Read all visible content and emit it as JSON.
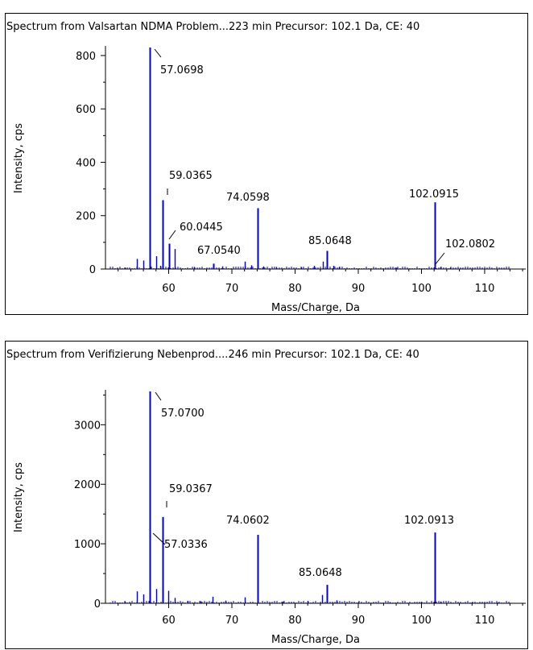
{
  "colors": {
    "spectrum": "#0000e6",
    "axis": "#000000",
    "label": "#000000"
  },
  "chart_data": [
    {
      "type": "bar",
      "title": "Spectrum from Valsartan NDMA Problem...223 min Precursor: 102.1 Da, CE: 40",
      "xlabel": "Mass/Charge, Da",
      "ylabel": "Intensity, cps",
      "xlim": [
        50,
        116.5
      ],
      "ylim": [
        0,
        830
      ],
      "xticks": [
        60,
        70,
        80,
        90,
        100,
        110
      ],
      "yticks": [
        0,
        200,
        400,
        600,
        800
      ],
      "peaks": [
        {
          "x": 57.0698,
          "y": 830,
          "label": "57.0698"
        },
        {
          "x": 59.0365,
          "y": 258,
          "label": "59.0365"
        },
        {
          "x": 60.0445,
          "y": 95,
          "label": "60.0445"
        },
        {
          "x": 61.0,
          "y": 75
        },
        {
          "x": 67.054,
          "y": 20,
          "label": "67.0540"
        },
        {
          "x": 74.0598,
          "y": 228,
          "label": "74.0598"
        },
        {
          "x": 85.0648,
          "y": 68,
          "label": "85.0648"
        },
        {
          "x": 84.4,
          "y": 28
        },
        {
          "x": 102.0915,
          "y": 250,
          "label": "102.0915"
        },
        {
          "x": 102.0802,
          "y": 12,
          "label": "102.0802"
        },
        {
          "x": 55.0,
          "y": 38
        },
        {
          "x": 56.0,
          "y": 32
        },
        {
          "x": 58.0,
          "y": 48
        },
        {
          "x": 72.0,
          "y": 28
        },
        {
          "x": 73.0,
          "y": 14
        },
        {
          "x": 75.0,
          "y": 10
        },
        {
          "x": 58.6,
          "y": 12
        },
        {
          "x": 53.0,
          "y": 6
        },
        {
          "x": 64.0,
          "y": 8
        },
        {
          "x": 68.5,
          "y": 10
        },
        {
          "x": 77.0,
          "y": 8
        },
        {
          "x": 83.0,
          "y": 12
        },
        {
          "x": 86.0,
          "y": 12
        },
        {
          "x": 87.0,
          "y": 8
        },
        {
          "x": 96.0,
          "y": 5
        },
        {
          "x": 103.0,
          "y": 8
        },
        {
          "x": 104.5,
          "y": 5
        },
        {
          "x": 81.0,
          "y": 6
        }
      ]
    },
    {
      "type": "bar",
      "title": "Spectrum from Verifizierung Nebenprod....246 min Precursor: 102.1 Da, CE: 40",
      "xlabel": "Mass/Charge, Da",
      "ylabel": "Intensity, cps",
      "xlim": [
        50,
        116.5
      ],
      "ylim": [
        0,
        3560
      ],
      "xticks": [
        60,
        70,
        80,
        90,
        100,
        110
      ],
      "yticks": [
        0,
        1000,
        2000,
        3000
      ],
      "peaks": [
        {
          "x": 57.07,
          "y": 3560,
          "label": "57.0700"
        },
        {
          "x": 59.0367,
          "y": 1450,
          "label": "59.0367"
        },
        {
          "x": 57.0336,
          "y": 900,
          "label": "57.0336"
        },
        {
          "x": 74.0602,
          "y": 1150,
          "label": "74.0602"
        },
        {
          "x": 85.0648,
          "y": 310,
          "label": "85.0648"
        },
        {
          "x": 102.0913,
          "y": 1190,
          "label": "102.0913"
        },
        {
          "x": 55.0,
          "y": 200
        },
        {
          "x": 56.0,
          "y": 150
        },
        {
          "x": 58.0,
          "y": 240
        },
        {
          "x": 60.0,
          "y": 210
        },
        {
          "x": 61.0,
          "y": 90
        },
        {
          "x": 67.0,
          "y": 110
        },
        {
          "x": 72.0,
          "y": 100
        },
        {
          "x": 84.3,
          "y": 140
        },
        {
          "x": 53.0,
          "y": 30
        },
        {
          "x": 63.0,
          "y": 40
        },
        {
          "x": 65.0,
          "y": 35
        },
        {
          "x": 69.0,
          "y": 45
        },
        {
          "x": 78.0,
          "y": 30
        },
        {
          "x": 82.0,
          "y": 40
        },
        {
          "x": 86.5,
          "y": 50
        },
        {
          "x": 90.0,
          "y": 25
        },
        {
          "x": 95.0,
          "y": 20
        },
        {
          "x": 100.0,
          "y": 25
        },
        {
          "x": 103.0,
          "y": 30
        },
        {
          "x": 108.0,
          "y": 15
        },
        {
          "x": 112.0,
          "y": 12
        }
      ]
    }
  ]
}
